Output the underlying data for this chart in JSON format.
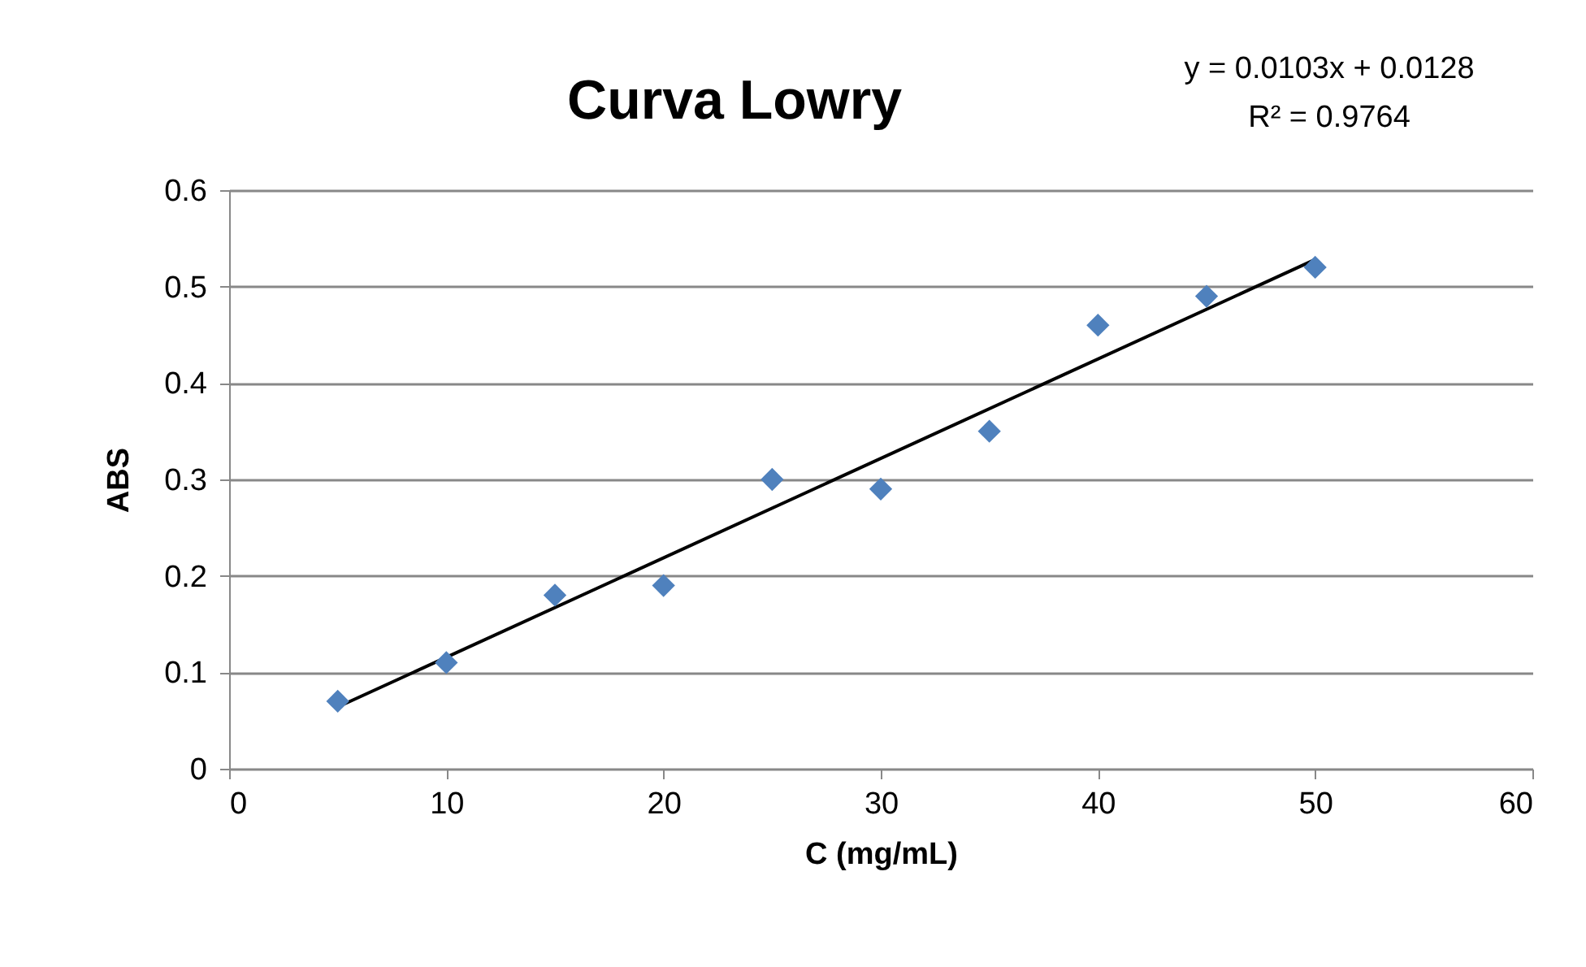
{
  "chart_data": {
    "type": "scatter",
    "title": "Curva Lowry",
    "xlabel": "C (mg/mL)",
    "ylabel": "ABS",
    "annotations": [
      "y = 0.0103x + 0.0128",
      "R² = 0.9764"
    ],
    "x": [
      5,
      10,
      15,
      20,
      25,
      30,
      35,
      40,
      45,
      50
    ],
    "series": [
      {
        "color": "#4f81bd",
        "marker": "diamond",
        "values": [
          0.07,
          0.11,
          0.18,
          0.19,
          0.3,
          0.29,
          0.35,
          0.46,
          0.49,
          0.52
        ]
      },
      {
        "type": "line",
        "color": "#000000",
        "x": [
          5,
          50
        ],
        "values": [
          0.064,
          0.528
        ]
      }
    ],
    "xlim": [
      0,
      60
    ],
    "xticks": [
      0,
      10,
      20,
      30,
      40,
      50,
      60
    ],
    "ylim": [
      0,
      0.6
    ],
    "yticks": [
      0,
      0.1,
      0.2,
      0.3,
      0.4,
      0.5,
      0.6
    ],
    "grid": "y"
  }
}
